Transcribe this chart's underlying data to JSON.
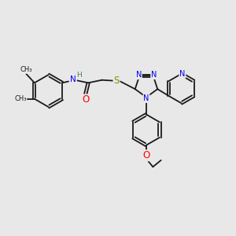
{
  "bg_color": "#e8e8e8",
  "bond_color": "#1a1a1a",
  "N_color": "#0000ee",
  "O_color": "#ff0000",
  "S_color": "#888800",
  "H_color": "#4a7a7a",
  "font_size": 7.0,
  "bond_width": 1.3,
  "dbo": 0.055,
  "figsize": [
    3.0,
    3.0
  ],
  "dpi": 100,
  "xlim": [
    0,
    10
  ],
  "ylim": [
    0,
    10
  ]
}
